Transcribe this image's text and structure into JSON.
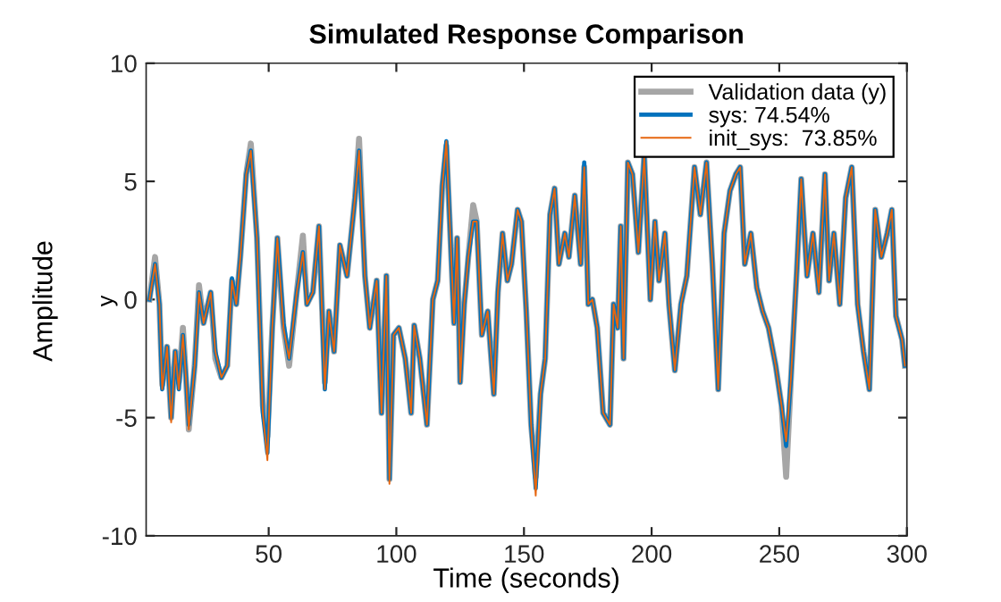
{
  "chart_data": {
    "type": "line",
    "title": "Simulated Response Comparison",
    "xlabel": "Time (seconds)",
    "ylabel": "Amplitude",
    "annotations": [
      "y"
    ],
    "x": [
      3.3,
      5.5,
      7.2,
      8.3,
      10.2,
      11.8,
      13.4,
      14.8,
      16.4,
      17.6,
      18.7,
      21,
      22.7,
      24.5,
      27.3,
      29.1,
      31.5,
      33.8,
      35.6,
      37.3,
      38.9,
      41.2,
      43,
      45.4,
      47.7,
      49.5,
      51.4,
      53.4,
      55.8,
      58,
      61,
      63.4,
      65,
      67.3,
      69.7,
      72,
      73.6,
      75.6,
      77.9,
      80.7,
      83.8,
      85.4,
      87.7,
      89.6,
      92.3,
      94.2,
      96.1,
      97.3,
      98.9,
      101,
      103.5,
      105.8,
      107,
      109.2,
      112,
      114.3,
      116.2,
      118,
      119.6,
      120.8,
      122.6,
      123.8,
      125,
      126.6,
      128.2,
      130.1,
      131.5,
      133.5,
      135.8,
      138.2,
      139.8,
      141.6,
      143.5,
      145.1,
      147.5,
      149,
      150.9,
      152.8,
      154.6,
      156.5,
      158.3,
      160.2,
      162,
      163.7,
      166,
      167.6,
      169.9,
      172.2,
      173.6,
      175.2,
      176.8,
      178.7,
      181,
      183.7,
      185.1,
      186.7,
      187.9,
      189,
      190.7,
      192.5,
      194.8,
      197.1,
      199.5,
      201.3,
      202.9,
      205.2,
      206.8,
      209.1,
      211.5,
      213.8,
      216.8,
      219.1,
      221.5,
      223.8,
      226.1,
      228.4,
      230.7,
      233,
      234.7,
      236.5,
      238.9,
      241.2,
      243.5,
      245.8,
      248.6,
      250.9,
      252.7,
      254.6,
      256.9,
      258.6,
      260.9,
      263.2,
      265.5,
      267.9,
      269.5,
      271.4,
      273.7,
      276,
      278.4,
      280.7,
      283,
      285.3,
      287.6,
      290,
      292.3,
      294.1,
      295.7,
      298.1,
      299.2
    ],
    "series": [
      {
        "name": "Validation data (y)",
        "color": "#a6a6a6",
        "values": [
          0,
          1.8,
          -0.2,
          -3.6,
          -2,
          -5.0,
          -2.2,
          -3.5,
          -1.2,
          -3.3,
          -5.5,
          -2.8,
          0.6,
          -1,
          0.3,
          -2.5,
          -3.3,
          -2.8,
          0.8,
          -0.2,
          1.8,
          5.3,
          6.6,
          2.6,
          -4.5,
          -5.8,
          -1.2,
          2.6,
          -1.2,
          -2.8,
          0.3,
          2.7,
          -0.2,
          0.3,
          3.1,
          -3.5,
          -0.5,
          -2.2,
          2.3,
          1,
          4.3,
          6.8,
          1,
          -1.2,
          0.8,
          -4.8,
          1,
          -7.6,
          -1.5,
          -1.2,
          -2.5,
          -4.8,
          -1.1,
          -2.5,
          -5.3,
          0,
          0.8,
          4.8,
          6.5,
          3.6,
          -1,
          2.6,
          -3.5,
          -0.2,
          1.8,
          4.0,
          3.3,
          -1.5,
          -0.5,
          -4,
          0.3,
          2.8,
          0.8,
          1.5,
          3.8,
          3.3,
          -0.5,
          -5.3,
          -7.5,
          -4,
          -2.5,
          3.6,
          4.7,
          1.5,
          2.8,
          1.8,
          4.4,
          1.5,
          5.6,
          -0.2,
          0,
          -1.2,
          -4.8,
          -5.3,
          -0.2,
          -1.2,
          3.1,
          -2.5,
          5.8,
          5.3,
          2,
          6.1,
          0,
          3.3,
          0.8,
          2.8,
          -0.2,
          -3,
          -0.2,
          1,
          5.6,
          3.6,
          5.8,
          1.5,
          -3.8,
          2.8,
          4.6,
          5.3,
          5.6,
          1.5,
          2.8,
          0.5,
          -0.5,
          -1.2,
          -2.8,
          -4.5,
          -7.5,
          -3.3,
          1.3,
          5.1,
          1,
          2.8,
          0.3,
          5.3,
          0.8,
          2.8,
          -0.2,
          4.3,
          5.6,
          -0.2,
          -2.2,
          -3.8,
          3.8,
          1.8,
          2.8,
          3.8,
          -0.7,
          -1.7,
          -2.8
        ]
      },
      {
        "name": "sys: 74.54%",
        "color": "#0072bd",
        "values": [
          0,
          1.5,
          -0.2,
          -3.8,
          -2,
          -5.0,
          -2.2,
          -3.8,
          -1.5,
          -3.3,
          -5.3,
          -2.8,
          0.3,
          -1,
          0.3,
          -2.2,
          -3.3,
          -2.8,
          0.9,
          -0.2,
          1.8,
          5.3,
          6.3,
          2.6,
          -4.8,
          -6.5,
          -1.2,
          2.6,
          -1.0,
          -2.5,
          0.3,
          2,
          -0.2,
          0.3,
          3.1,
          -3.8,
          -0.5,
          -2.2,
          2.3,
          1,
          4.3,
          6.3,
          1,
          -1.2,
          0.8,
          -4.8,
          1,
          -7.6,
          -1.5,
          -1.2,
          -2.5,
          -4.8,
          -1.1,
          -2.5,
          -5.3,
          0,
          0.8,
          4.8,
          6.7,
          3.6,
          -1,
          2.6,
          -3.5,
          -0.2,
          1.8,
          3.3,
          3.3,
          -1.5,
          -0.5,
          -4,
          0.3,
          2.8,
          0.8,
          1.5,
          3.8,
          3.3,
          -0.5,
          -5.3,
          -8.0,
          -4,
          -2.5,
          3.6,
          4.7,
          1.5,
          2.8,
          1.8,
          4.4,
          1.5,
          5.8,
          -0.2,
          0,
          -1.2,
          -4.8,
          -5.3,
          -0.2,
          -1.2,
          3.1,
          -2.5,
          5.8,
          5.3,
          2,
          6.1,
          0,
          3.3,
          0.8,
          2.8,
          -0.2,
          -3,
          -0.2,
          1,
          5.6,
          3.6,
          5.8,
          1.5,
          -3.8,
          2.8,
          4.6,
          5.3,
          5.6,
          1.5,
          2.8,
          0.5,
          -0.5,
          -1.2,
          -2.8,
          -4.5,
          -6.2,
          -3.3,
          1.3,
          5.1,
          1,
          2.8,
          0.3,
          5.3,
          0.8,
          2.8,
          -0.2,
          4.3,
          5.6,
          -0.2,
          -2.2,
          -3.8,
          3.8,
          1.8,
          2.8,
          3.8,
          -0.7,
          -1.7,
          -2.8
        ]
      },
      {
        "name": "init_sys:  73.85%",
        "color": "#e6660f",
        "values": [
          0,
          1.5,
          -0.2,
          -3.8,
          -2,
          -5.2,
          -2.2,
          -3.8,
          -1.5,
          -3.3,
          -5.5,
          -2.8,
          0.3,
          -1,
          0.3,
          -2.2,
          -3.3,
          -2.8,
          0.8,
          -0.2,
          1.8,
          5.3,
          6.3,
          2.6,
          -4.8,
          -6.8,
          -1.2,
          2.6,
          -1.2,
          -2.5,
          0.3,
          2,
          -0.2,
          0.3,
          3.1,
          -3.8,
          -0.5,
          -2.2,
          2.3,
          1,
          4.3,
          6.3,
          1,
          -1.2,
          0.8,
          -4.8,
          1,
          -7.8,
          -1.5,
          -1.2,
          -2.5,
          -4.8,
          -1.1,
          -2.5,
          -5.3,
          0,
          0.8,
          4.8,
          6.7,
          3.6,
          -1,
          2.6,
          -3.5,
          -0.2,
          1.8,
          3.3,
          3.3,
          -1.5,
          -0.5,
          -4,
          0.3,
          2.8,
          0.8,
          1.5,
          3.8,
          3.3,
          -0.5,
          -5.3,
          -8.3,
          -4,
          -2.5,
          3.6,
          4.7,
          1.5,
          2.8,
          1.8,
          4.4,
          1.5,
          5.6,
          -0.2,
          0,
          -1.2,
          -4.8,
          -5.3,
          -0.2,
          -1.2,
          3.1,
          -2.5,
          5.8,
          5.3,
          2,
          6.1,
          0,
          3.3,
          0.8,
          2.8,
          -0.2,
          -3,
          -0.2,
          1,
          5.6,
          3.6,
          5.8,
          1.5,
          -3.8,
          2.8,
          4.6,
          5.3,
          5.6,
          1.5,
          2.8,
          0.5,
          -0.5,
          -1.2,
          -2.8,
          -4.5,
          -6,
          -3.3,
          1.3,
          5.1,
          1,
          2.8,
          0.3,
          5.3,
          0.8,
          2.8,
          -0.2,
          4.3,
          5.6,
          -0.2,
          -2.2,
          -3.8,
          3.8,
          1.8,
          2.8,
          3.8,
          -0.7,
          -1.7,
          -2.8
        ]
      }
    ],
    "xlim": [
      2,
      300
    ],
    "ylim": [
      -10,
      10
    ],
    "xticks": [
      50,
      100,
      150,
      200,
      250,
      300
    ],
    "yticks": [
      -10,
      -5,
      0,
      5,
      10
    ],
    "grid": false,
    "legend": "top right"
  }
}
